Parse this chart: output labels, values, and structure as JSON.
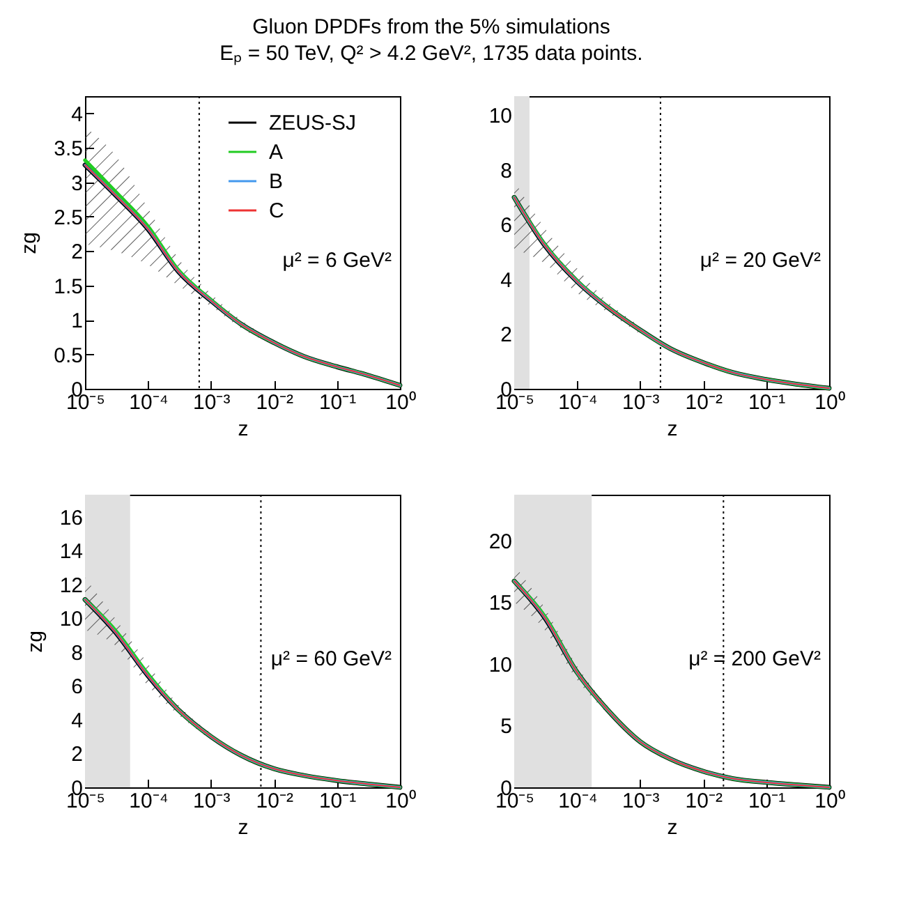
{
  "chart_data": [
    {
      "type": "line",
      "title": "Gluon DPDFs from the 5% simulations",
      "subtitle": "Eₚ = 50 TeV, Q² > 4.2 GeV², 1735 data points.",
      "xlabel": "z",
      "ylabel": "zg",
      "log": "x",
      "annotations": [
        "μ² = 6 GeV²"
      ],
      "legend": "top right",
      "grid": false,
      "x": [
        1e-05,
        3e-05,
        0.0001,
        0.0003,
        0.001,
        0.003,
        0.01,
        0.03,
        0.1,
        0.3,
        1
      ],
      "xlim": [
        1e-05,
        1
      ],
      "xticks": [
        {
          "value": 1e-05,
          "label": "10⁻⁵"
        },
        {
          "value": 0.0001,
          "label": "10⁻⁴"
        },
        {
          "value": 0.001,
          "label": "10⁻³"
        },
        {
          "value": 0.01,
          "label": "10⁻²"
        },
        {
          "value": 0.1,
          "label": "10⁻¹"
        },
        {
          "value": 1,
          "label": "10⁰"
        }
      ],
      "ylim": [
        0,
        4.25
      ],
      "yticks": [
        0,
        0.5,
        1,
        1.5,
        2,
        2.5,
        3,
        3.5,
        4
      ],
      "ref_lines": [
        {
          "axis": "x",
          "value": 0.00065,
          "line_style": "dotted",
          "color": "#000000"
        }
      ],
      "series": [
        {
          "name": "ZEUS-SJ",
          "color": "#000000",
          "values": [
            3.25,
            2.82,
            2.32,
            1.71,
            1.28,
            0.94,
            0.67,
            0.47,
            0.32,
            0.2,
            0.05
          ],
          "lower": [
            2.1,
            2.0,
            1.8,
            1.5,
            1.2,
            0.88,
            0.64,
            null,
            null,
            null,
            null
          ],
          "upper": [
            3.8,
            3.4,
            2.62,
            1.9,
            1.38,
            1.0,
            0.7,
            null,
            null,
            null,
            null
          ]
        },
        {
          "name": "A",
          "color": "#22cc22",
          "values": [
            3.32,
            2.87,
            2.36,
            1.73,
            1.29,
            0.94,
            0.67,
            0.47,
            0.32,
            0.2,
            0.05
          ]
        },
        {
          "name": "B",
          "color": "#4499ee",
          "values": [
            3.25,
            2.82,
            2.32,
            1.71,
            1.28,
            0.94,
            0.67,
            0.47,
            0.32,
            0.2,
            0.05
          ]
        },
        {
          "name": "C",
          "color": "#ee3333",
          "values": [
            3.25,
            2.82,
            2.32,
            1.71,
            1.28,
            0.94,
            0.67,
            0.47,
            0.32,
            0.2,
            0.05
          ]
        }
      ]
    },
    {
      "type": "line",
      "xlabel": "z",
      "log": "x",
      "annotations": [
        "μ² = 20 GeV²"
      ],
      "grid": false,
      "x": [
        1e-05,
        3e-05,
        0.0001,
        0.0003,
        0.001,
        0.003,
        0.01,
        0.03,
        0.1,
        0.3,
        1
      ],
      "xlim": [
        1e-05,
        1
      ],
      "xticks": [
        {
          "value": 1e-05,
          "label": "10⁻⁵"
        },
        {
          "value": 0.0001,
          "label": "10⁻⁴"
        },
        {
          "value": 0.001,
          "label": "10⁻³"
        },
        {
          "value": 0.01,
          "label": "10⁻²"
        },
        {
          "value": 0.1,
          "label": "10⁻¹"
        },
        {
          "value": 1,
          "label": "10⁰"
        }
      ],
      "ylim": [
        0,
        10.7
      ],
      "yticks": [
        0,
        2,
        4,
        6,
        8,
        10
      ],
      "ref_lines": [
        {
          "axis": "x",
          "value": 0.0021,
          "line_style": "dotted",
          "color": "#000000"
        }
      ],
      "bands": [
        {
          "axis": "x",
          "from": 1e-05,
          "to": 1.75e-05,
          "color": "#e0e0e0"
        }
      ],
      "series": [
        {
          "color": "#000000",
          "values": [
            7.0,
            5.27,
            3.92,
            2.99,
            2.15,
            1.47,
            0.96,
            0.59,
            0.34,
            0.17,
            0.02
          ],
          "lower": [
            5.1,
            4.6,
            3.5,
            2.8,
            2.0,
            null,
            null,
            null,
            null,
            null,
            null
          ],
          "upper": [
            7.6,
            5.9,
            4.4,
            3.2,
            2.3,
            null,
            null,
            null,
            null,
            null,
            null
          ]
        },
        {
          "color": "#22cc22",
          "values": [
            7.0,
            5.3,
            3.94,
            3.0,
            2.15,
            1.47,
            0.96,
            0.59,
            0.34,
            0.17,
            0.02
          ]
        },
        {
          "color": "#4499ee",
          "values": [
            7.0,
            5.27,
            3.92,
            2.99,
            2.15,
            1.47,
            0.96,
            0.59,
            0.34,
            0.17,
            0.02
          ]
        },
        {
          "color": "#ee3333",
          "values": [
            7.0,
            5.27,
            3.92,
            2.99,
            2.15,
            1.47,
            0.96,
            0.59,
            0.34,
            0.17,
            0.02
          ]
        }
      ]
    },
    {
      "type": "line",
      "xlabel": "z",
      "ylabel": "zg",
      "log": "x",
      "annotations": [
        "μ² = 60 GeV²"
      ],
      "grid": false,
      "x": [
        1e-05,
        3e-05,
        0.0001,
        0.0003,
        0.001,
        0.003,
        0.01,
        0.03,
        0.1,
        0.3,
        1
      ],
      "xlim": [
        1e-05,
        1
      ],
      "xticks": [
        {
          "value": 1e-05,
          "label": "10⁻⁵"
        },
        {
          "value": 0.0001,
          "label": "10⁻⁴"
        },
        {
          "value": 0.001,
          "label": "10⁻³"
        },
        {
          "value": 0.01,
          "label": "10⁻²"
        },
        {
          "value": 0.1,
          "label": "10⁻¹"
        },
        {
          "value": 1,
          "label": "10⁰"
        }
      ],
      "ylim": [
        0,
        17.3
      ],
      "yticks": [
        0,
        2,
        4,
        6,
        8,
        10,
        12,
        14,
        16
      ],
      "ref_lines": [
        {
          "axis": "x",
          "value": 0.0062,
          "line_style": "dotted",
          "color": "#000000"
        }
      ],
      "bands": [
        {
          "axis": "x",
          "from": 1e-05,
          "to": 5.2e-05,
          "color": "#e0e0e0"
        }
      ],
      "series": [
        {
          "color": "#000000",
          "values": [
            11.1,
            9.2,
            6.6,
            4.6,
            3.0,
            1.9,
            1.1,
            0.7,
            0.4,
            0.2,
            0.0
          ],
          "lower": [
            9.3,
            8.4,
            6.0,
            4.3,
            2.8,
            null,
            null,
            null,
            null,
            null,
            null
          ],
          "upper": [
            12.4,
            10.0,
            7.3,
            4.9,
            3.2,
            null,
            null,
            null,
            null,
            null,
            null
          ]
        },
        {
          "color": "#22cc22",
          "values": [
            11.1,
            9.3,
            6.7,
            4.6,
            3.0,
            1.9,
            1.1,
            0.7,
            0.4,
            0.2,
            0.0
          ]
        },
        {
          "color": "#4499ee",
          "values": [
            11.1,
            9.2,
            6.6,
            4.6,
            3.0,
            1.9,
            1.1,
            0.7,
            0.4,
            0.2,
            0.0
          ]
        },
        {
          "color": "#ee3333",
          "values": [
            11.1,
            9.2,
            6.6,
            4.6,
            3.0,
            1.9,
            1.1,
            0.7,
            0.4,
            0.2,
            0.0
          ]
        }
      ]
    },
    {
      "type": "line",
      "xlabel": "z",
      "log": "x",
      "annotations": [
        "μ² = 200 GeV²"
      ],
      "grid": false,
      "x": [
        1e-05,
        3e-05,
        0.0001,
        0.0003,
        0.001,
        0.003,
        0.01,
        0.03,
        0.1,
        0.3,
        1
      ],
      "xlim": [
        1e-05,
        1
      ],
      "xticks": [
        {
          "value": 1e-05,
          "label": "10⁻⁵"
        },
        {
          "value": 0.0001,
          "label": "10⁻⁴"
        },
        {
          "value": 0.001,
          "label": "10⁻³"
        },
        {
          "value": 0.01,
          "label": "10⁻²"
        },
        {
          "value": 0.1,
          "label": "10⁻¹"
        },
        {
          "value": 1,
          "label": "10⁰"
        }
      ],
      "ylim": [
        0,
        23.7
      ],
      "yticks": [
        0,
        5,
        10,
        15,
        20
      ],
      "ref_lines": [
        {
          "axis": "x",
          "value": 0.021,
          "line_style": "dotted",
          "color": "#000000"
        }
      ],
      "bands": [
        {
          "axis": "x",
          "from": 1e-05,
          "to": 0.00017,
          "color": "#e0e0e0"
        }
      ],
      "series": [
        {
          "color": "#000000",
          "values": [
            16.7,
            13.8,
            9.3,
            6.3,
            3.7,
            2.3,
            1.3,
            0.7,
            0.4,
            0.2,
            0.0
          ],
          "lower": [
            15.0,
            12.8,
            8.7,
            6.0,
            null,
            null,
            null,
            null,
            null,
            null,
            null
          ],
          "upper": [
            18.0,
            14.6,
            9.8,
            6.6,
            null,
            null,
            null,
            null,
            null,
            null,
            null
          ]
        },
        {
          "color": "#22cc22",
          "values": [
            16.7,
            13.9,
            9.3,
            6.3,
            3.7,
            2.3,
            1.3,
            0.7,
            0.4,
            0.2,
            0.0
          ]
        },
        {
          "color": "#4499ee",
          "values": [
            16.7,
            13.8,
            9.3,
            6.3,
            3.7,
            2.3,
            1.3,
            0.7,
            0.4,
            0.2,
            0.0
          ]
        },
        {
          "color": "#ee3333",
          "values": [
            16.7,
            13.8,
            9.3,
            6.3,
            3.7,
            2.3,
            1.3,
            0.7,
            0.4,
            0.2,
            0.0
          ]
        }
      ]
    }
  ]
}
